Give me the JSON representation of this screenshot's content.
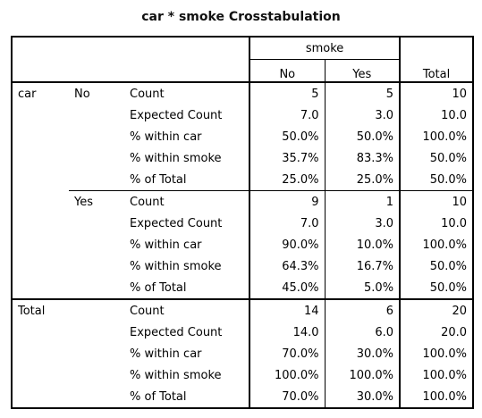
{
  "title": "car * smoke Crosstabulation",
  "header": {
    "col_var": "smoke",
    "col_no": "No",
    "col_yes": "Yes",
    "col_total": "Total"
  },
  "row_var": "car",
  "groups": [
    {
      "label": "No",
      "rows": [
        {
          "stat": "Count",
          "no": "5",
          "yes": "5",
          "total": "10"
        },
        {
          "stat": "Expected Count",
          "no": "7.0",
          "yes": "3.0",
          "total": "10.0"
        },
        {
          "stat": "% within car",
          "no": "50.0%",
          "yes": "50.0%",
          "total": "100.0%"
        },
        {
          "stat": "% within smoke",
          "no": "35.7%",
          "yes": "83.3%",
          "total": "50.0%"
        },
        {
          "stat": "% of Total",
          "no": "25.0%",
          "yes": "25.0%",
          "total": "50.0%"
        }
      ]
    },
    {
      "label": "Yes",
      "rows": [
        {
          "stat": "Count",
          "no": "9",
          "yes": "1",
          "total": "10"
        },
        {
          "stat": "Expected Count",
          "no": "7.0",
          "yes": "3.0",
          "total": "10.0"
        },
        {
          "stat": "% within car",
          "no": "90.0%",
          "yes": "10.0%",
          "total": "100.0%"
        },
        {
          "stat": "% within smoke",
          "no": "64.3%",
          "yes": "16.7%",
          "total": "50.0%"
        },
        {
          "stat": "% of Total",
          "no": "45.0%",
          "yes": "5.0%",
          "total": "50.0%"
        }
      ]
    }
  ],
  "total": {
    "label": "Total",
    "rows": [
      {
        "stat": "Count",
        "no": "14",
        "yes": "6",
        "total": "20"
      },
      {
        "stat": "Expected Count",
        "no": "14.0",
        "yes": "6.0",
        "total": "20.0"
      },
      {
        "stat": "% within car",
        "no": "70.0%",
        "yes": "30.0%",
        "total": "100.0%"
      },
      {
        "stat": "% within smoke",
        "no": "100.0%",
        "yes": "100.0%",
        "total": "100.0%"
      },
      {
        "stat": "% of Total",
        "no": "70.0%",
        "yes": "30.0%",
        "total": "100.0%"
      }
    ]
  }
}
